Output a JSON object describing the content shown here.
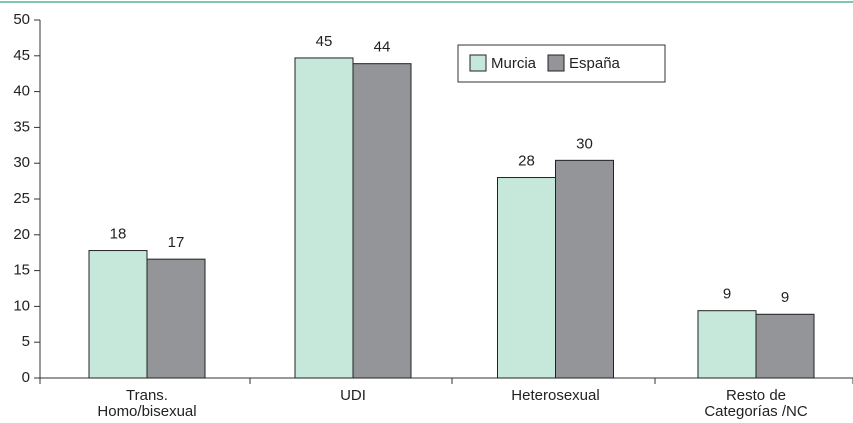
{
  "chart_data": {
    "type": "bar",
    "categories": [
      "Trans.\nHomo/bisexual",
      "UDI",
      "Heterosexual",
      "Resto de\nCategorías /NC"
    ],
    "series": [
      {
        "name": "Murcia",
        "color": "#c5e8da",
        "values": [
          17.8,
          44.7,
          28.0,
          9.4
        ],
        "value_labels": [
          "18",
          "45",
          "28",
          "9"
        ]
      },
      {
        "name": "España",
        "color": "#939598",
        "values": [
          16.6,
          43.9,
          30.4,
          8.9
        ],
        "value_labels": [
          "17",
          "44",
          "30",
          "9"
        ]
      }
    ],
    "ylim": [
      0,
      50
    ],
    "yticks": [
      0,
      5,
      10,
      15,
      20,
      25,
      30,
      35,
      40,
      45,
      50
    ],
    "grid": false,
    "legend": "top-right"
  }
}
